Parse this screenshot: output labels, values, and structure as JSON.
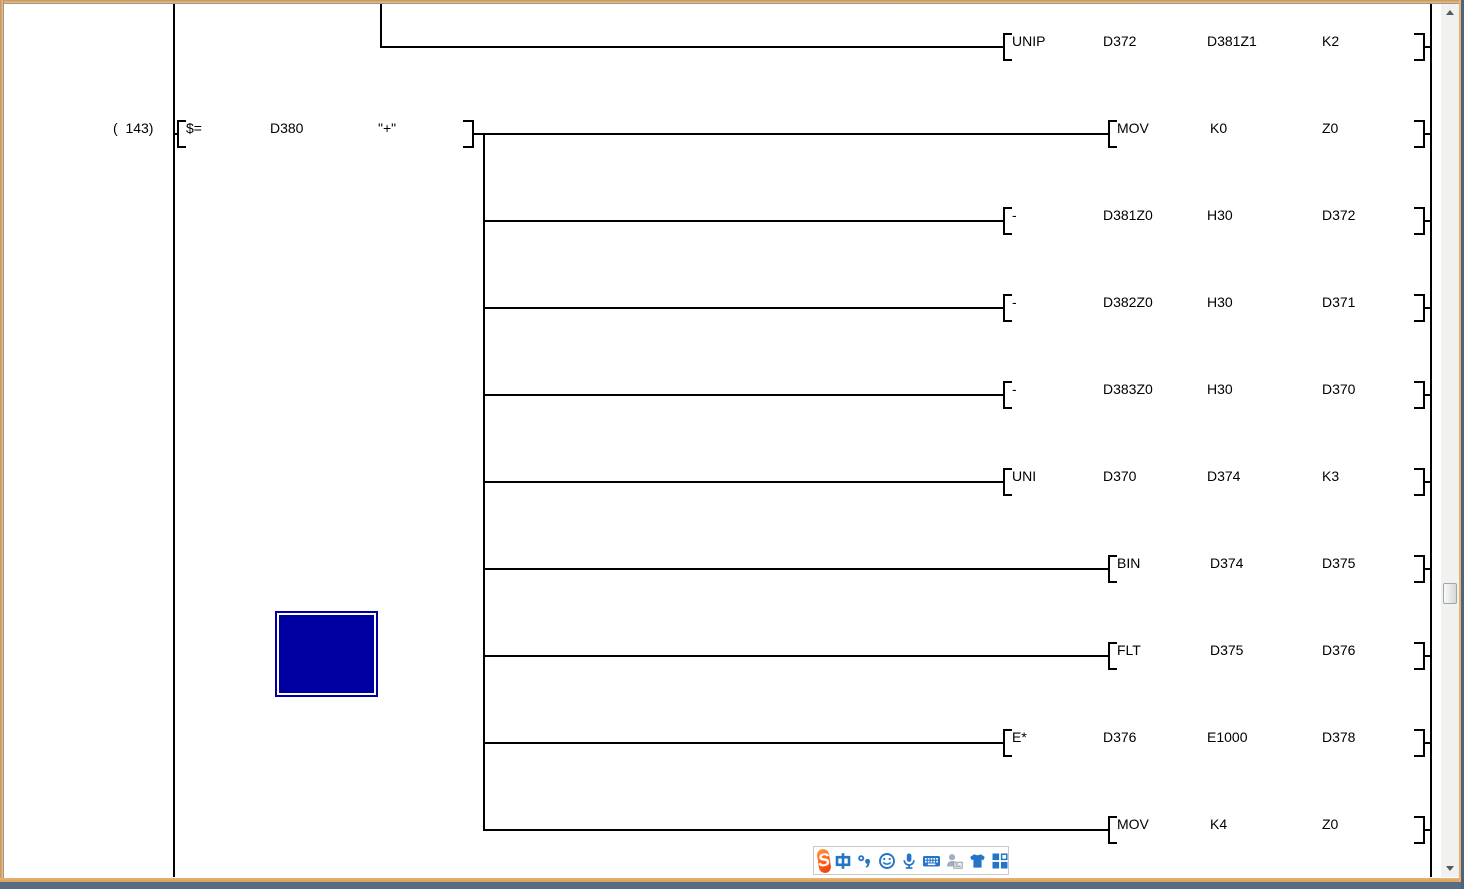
{
  "ladder": {
    "step_number": "(  143)",
    "comparison": {
      "instruction": "$=",
      "operands": [
        "D380",
        "\"+\""
      ]
    },
    "rungs": [
      {
        "instruction": "UNIP",
        "operands": [
          "D372",
          "D381Z1",
          "K2"
        ]
      },
      {
        "instruction": "MOV",
        "operands": [
          "K0",
          "Z0"
        ]
      },
      {
        "instruction": "-",
        "operands": [
          "D381Z0",
          "H30",
          "D372"
        ]
      },
      {
        "instruction": "-",
        "operands": [
          "D382Z0",
          "H30",
          "D371"
        ]
      },
      {
        "instruction": "-",
        "operands": [
          "D383Z0",
          "H30",
          "D370"
        ]
      },
      {
        "instruction": "UNI",
        "operands": [
          "D370",
          "D374",
          "K3"
        ]
      },
      {
        "instruction": "BIN",
        "operands": [
          "D374",
          "D375"
        ]
      },
      {
        "instruction": "FLT",
        "operands": [
          "D375",
          "D376"
        ]
      },
      {
        "instruction": "E*",
        "operands": [
          "D376",
          "E1000",
          "D378"
        ]
      },
      {
        "instruction": "MOV",
        "operands": [
          "K4",
          "Z0"
        ]
      }
    ]
  },
  "cursor": {
    "color": "#0000A2"
  },
  "scrollbar": {
    "icons": [
      "scroll-up-icon",
      "scroll-down-icon"
    ]
  },
  "ime_toolbar": {
    "logo_text": "S",
    "icon_blue": "#2574C6",
    "icon_gray": "#A2AFBE",
    "logo_orange": "#FF5C17",
    "icons": [
      "sogou-logo",
      "chinese-mode-icon",
      "punctuation-icon",
      "emoji-icon",
      "voice-input-icon",
      "soft-keyboard-icon",
      "account-icon",
      "skin-icon",
      "toolbox-icon"
    ]
  }
}
